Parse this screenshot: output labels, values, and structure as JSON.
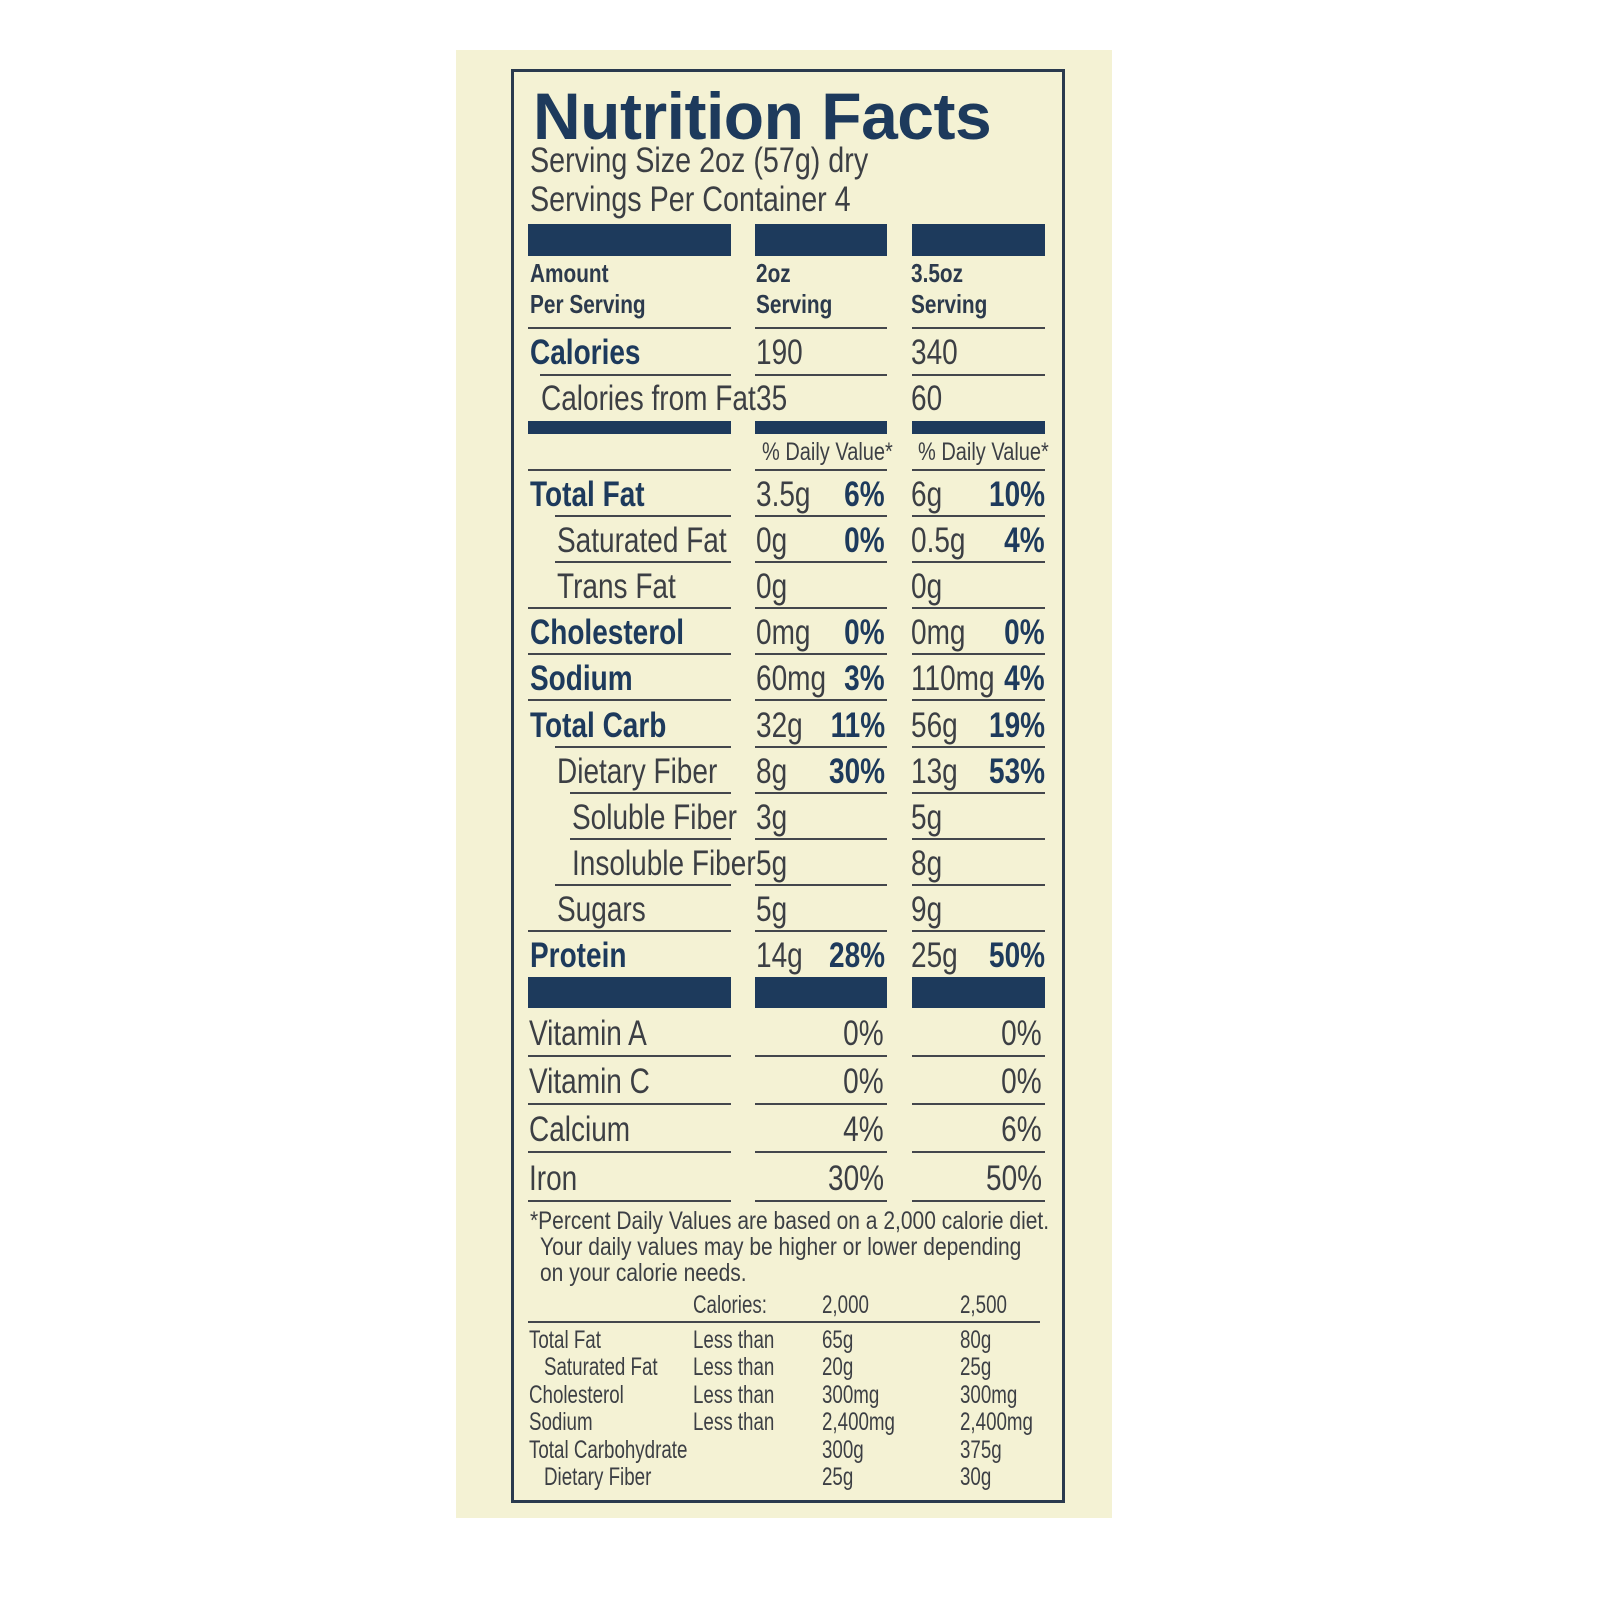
{
  "label": {
    "title": "Nutrition Facts",
    "serving_size": "Serving Size 2oz (57g) dry",
    "servings_per_container": "Servings Per Container 4",
    "colors": {
      "ink": "#1d3a5c",
      "text": "#3c3f44",
      "background": "#f4f2d4"
    },
    "header": {
      "col1_line1": "Amount",
      "col1_line2": "Per Serving",
      "col2_line1": "2oz",
      "col2_line2": "Serving",
      "col3_line1": "3.5oz",
      "col3_line2": "Serving"
    },
    "calories": {
      "label": "Calories",
      "v1": "190",
      "v2": "340"
    },
    "calories_from_fat": {
      "label": "Calories from Fat",
      "v1": "35",
      "v2": "60"
    },
    "daily_value_header": "% Daily Value*",
    "nutrients": [
      {
        "label": "Total Fat",
        "level": 0,
        "bold": true,
        "a1": "3.5g",
        "p1": "6%",
        "a2": "6g",
        "p2": "10%"
      },
      {
        "label": "Saturated Fat",
        "level": 1,
        "bold": false,
        "a1": "0g",
        "p1": "0%",
        "a2": "0.5g",
        "p2": "4%"
      },
      {
        "label": "Trans Fat",
        "level": 1,
        "bold": false,
        "a1": "0g",
        "p1": "",
        "a2": "0g",
        "p2": ""
      },
      {
        "label": "Cholesterol",
        "level": 0,
        "bold": true,
        "a1": "0mg",
        "p1": "0%",
        "a2": "0mg",
        "p2": "0%"
      },
      {
        "label": "Sodium",
        "level": 0,
        "bold": true,
        "a1": "60mg",
        "p1": "3%",
        "a2": "110mg",
        "p2": "4%"
      },
      {
        "label": "Total Carb",
        "level": 0,
        "bold": true,
        "a1": "32g",
        "p1": "11%",
        "a2": "56g",
        "p2": "19%"
      },
      {
        "label": "Dietary Fiber",
        "level": 1,
        "bold": false,
        "a1": "8g",
        "p1": "30%",
        "a2": "13g",
        "p2": "53%"
      },
      {
        "label": "Soluble Fiber",
        "level": 2,
        "bold": false,
        "a1": "3g",
        "p1": "",
        "a2": "5g",
        "p2": ""
      },
      {
        "label": "Insoluble Fiber",
        "level": 2,
        "bold": false,
        "a1": "5g",
        "p1": "",
        "a2": "8g",
        "p2": ""
      },
      {
        "label": "Sugars",
        "level": 1,
        "bold": false,
        "a1": "5g",
        "p1": "",
        "a2": "9g",
        "p2": ""
      },
      {
        "label": "Protein",
        "level": 0,
        "bold": true,
        "a1": "14g",
        "p1": "28%",
        "a2": "25g",
        "p2": "50%"
      }
    ],
    "vitamins": [
      {
        "label": "Vitamin A",
        "p1": "0%",
        "p2": "0%"
      },
      {
        "label": "Vitamin C",
        "p1": "0%",
        "p2": "0%"
      },
      {
        "label": "Calcium",
        "p1": "4%",
        "p2": "6%"
      },
      {
        "label": "Iron",
        "p1": "30%",
        "p2": "50%"
      }
    ],
    "footnote": [
      "*Percent Daily Values are based on a 2,000 calorie diet.",
      "Your daily values may be higher or lower depending",
      "on your calorie needs."
    ],
    "reference": {
      "header": {
        "label": "",
        "qualifier": "Calories:",
        "c1": "2,000",
        "c2": "2,500"
      },
      "rows": [
        {
          "label": "Total Fat",
          "indent": false,
          "qualifier": "Less than",
          "c1": "65g",
          "c2": "80g"
        },
        {
          "label": "Saturated Fat",
          "indent": true,
          "qualifier": "Less than",
          "c1": "20g",
          "c2": "25g"
        },
        {
          "label": "Cholesterol",
          "indent": false,
          "qualifier": "Less than",
          "c1": "300mg",
          "c2": "300mg"
        },
        {
          "label": "Sodium",
          "indent": false,
          "qualifier": "Less than",
          "c1": "2,400mg",
          "c2": "2,400mg"
        },
        {
          "label": "Total Carbohydrate",
          "indent": false,
          "qualifier": "",
          "c1": "300g",
          "c2": "375g"
        },
        {
          "label": "Dietary Fiber",
          "indent": true,
          "qualifier": "",
          "c1": "25g",
          "c2": "30g"
        }
      ]
    }
  }
}
